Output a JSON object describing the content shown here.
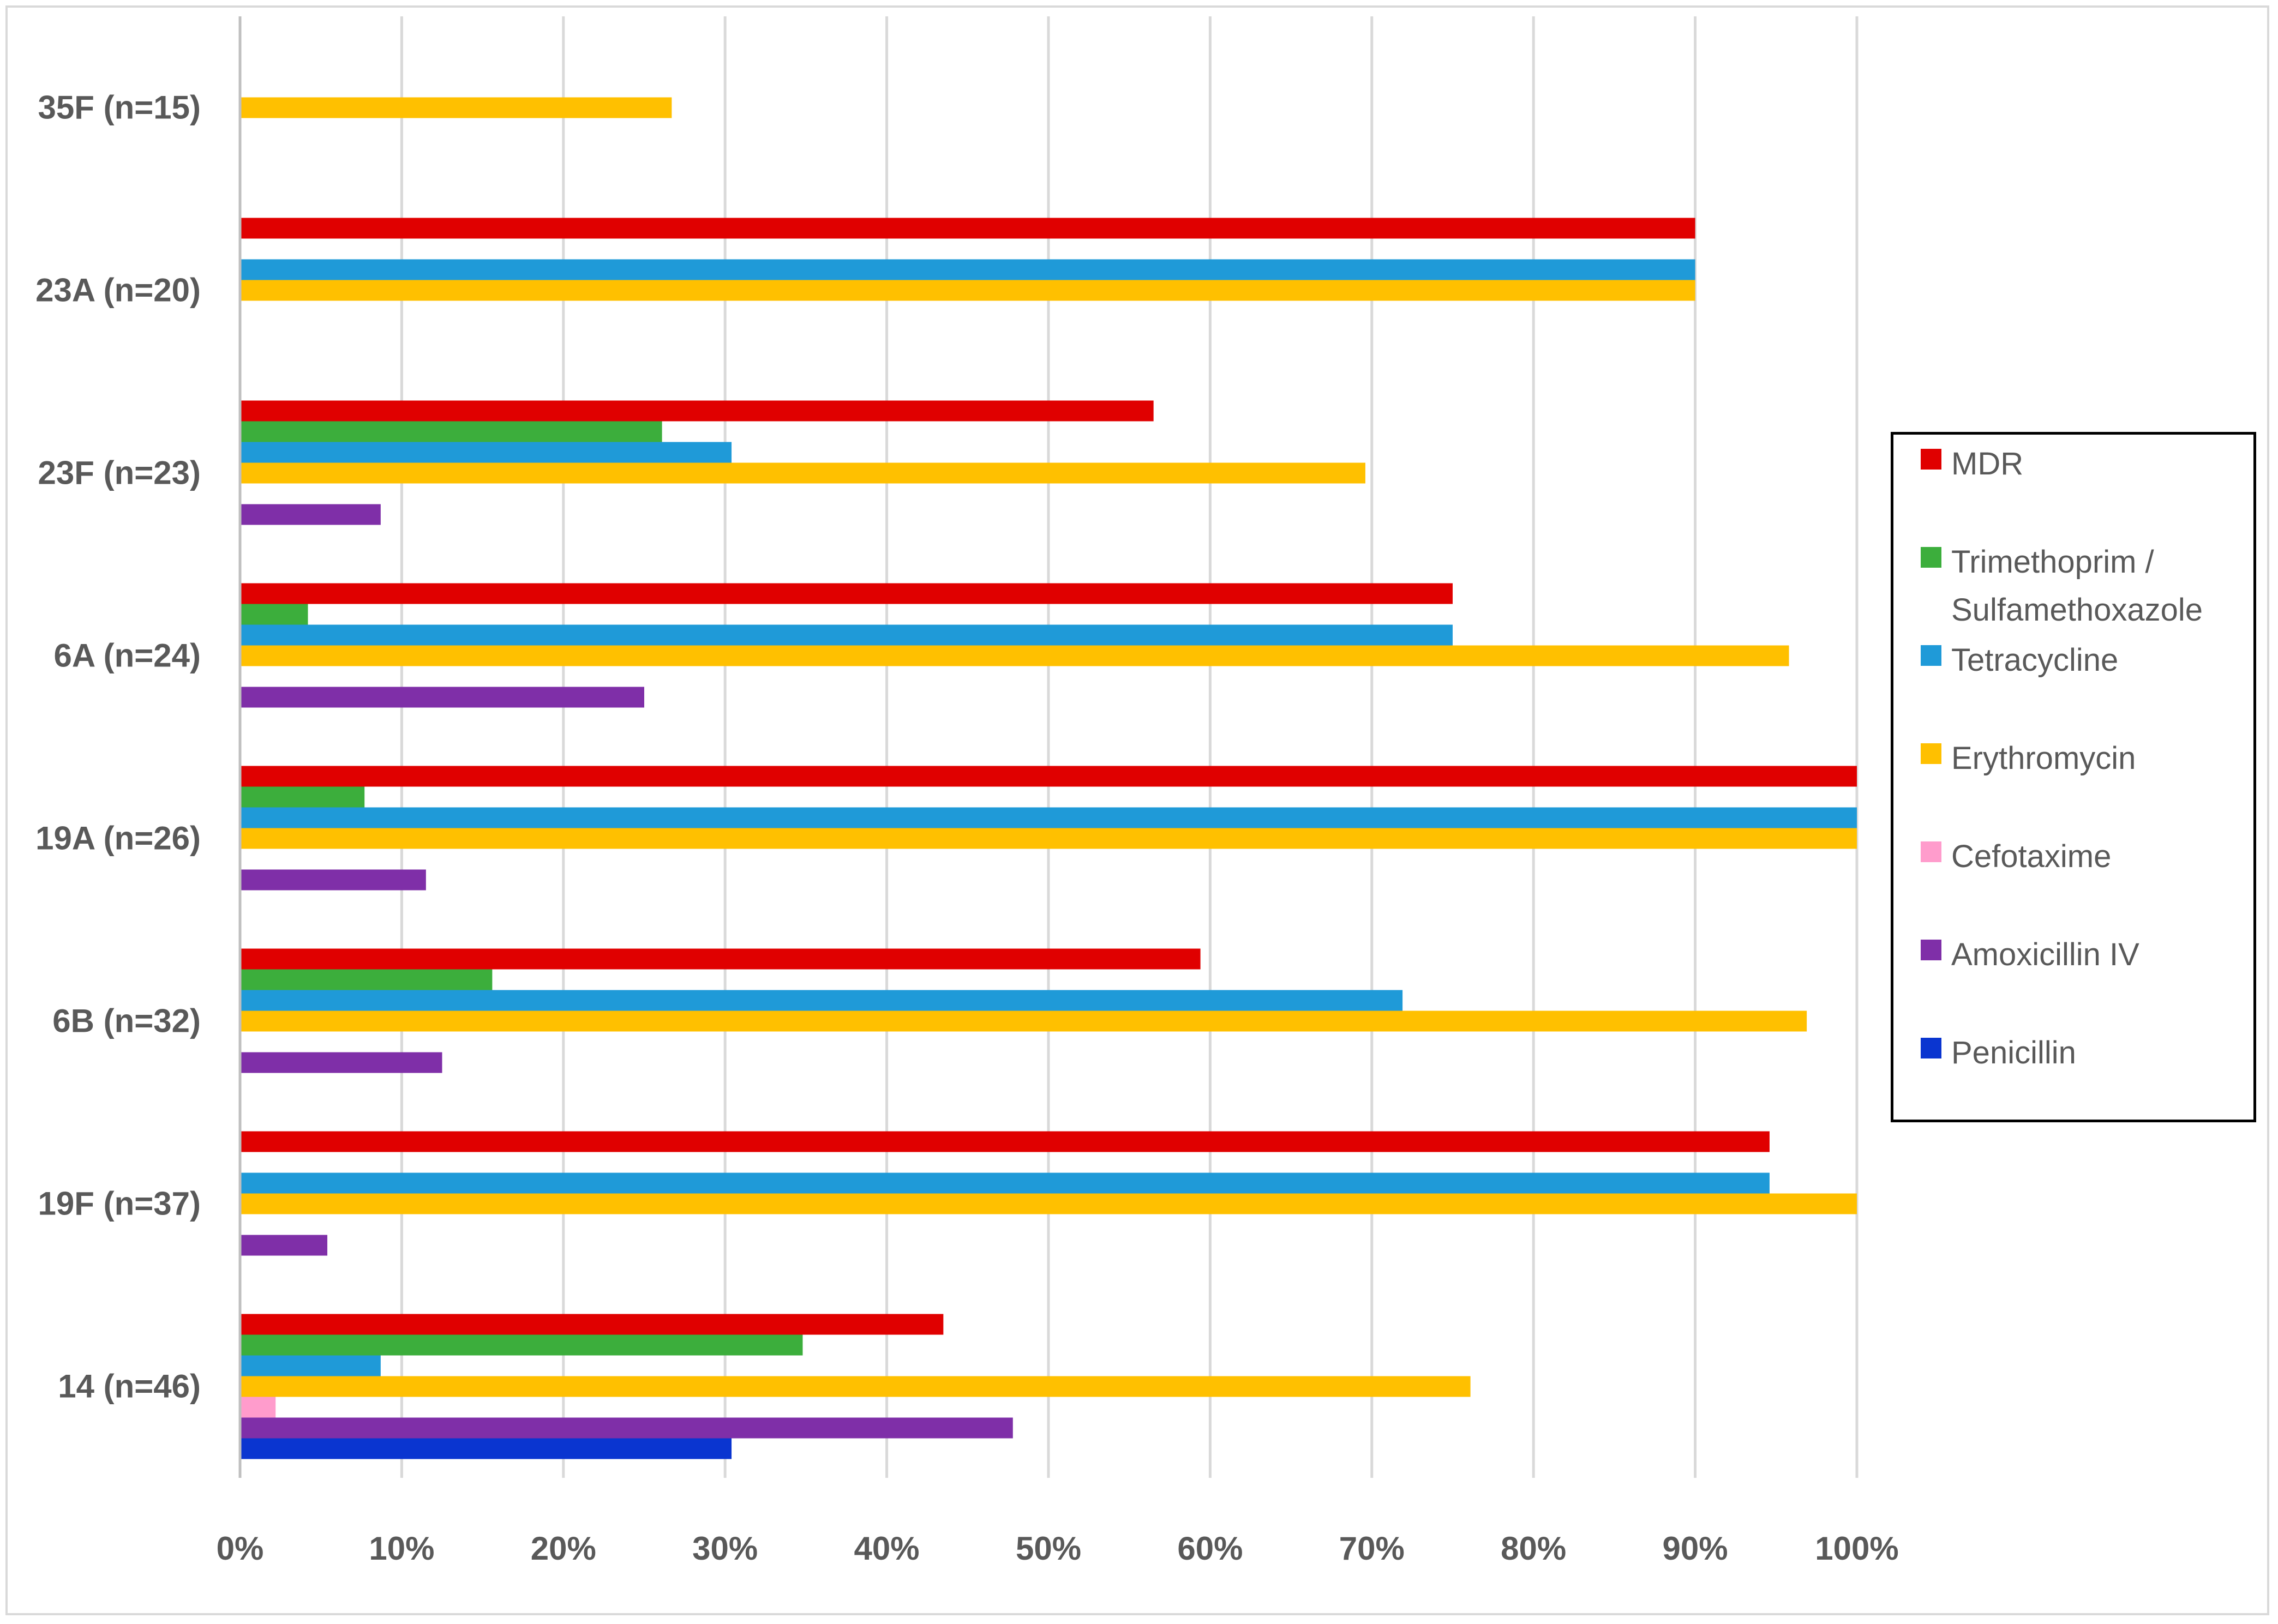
{
  "chart_data": {
    "type": "bar",
    "orientation": "horizontal",
    "title": "",
    "xlabel": "",
    "ylabel": "",
    "xlim": [
      0,
      100
    ],
    "x_ticks": [
      "0%",
      "10%",
      "20%",
      "30%",
      "40%",
      "50%",
      "60%",
      "70%",
      "80%",
      "90%",
      "100%"
    ],
    "grid": true,
    "legend_position": "right",
    "categories": [
      "35F (n=15)",
      "23A (n=20)",
      "23F (n=23)",
      "6A (n=24)",
      "19A (n=26)",
      "6B (n=32)",
      "19F (n=37)",
      "14 (n=46)"
    ],
    "series": [
      {
        "name": "MDR",
        "color": "#e00000",
        "values": [
          0,
          90,
          56.5,
          75,
          100,
          59.4,
          94.6,
          43.5
        ]
      },
      {
        "name": "Trimethoprim / Sulfamethoxazole",
        "color": "#3cae3c",
        "values": [
          0,
          0,
          26.1,
          4.2,
          7.7,
          15.6,
          0,
          34.8
        ]
      },
      {
        "name": "Tetracycline",
        "color": "#1f9ad8",
        "values": [
          0,
          90,
          30.4,
          75,
          100,
          71.9,
          94.6,
          8.7
        ]
      },
      {
        "name": "Erythromycin",
        "color": "#ffc000",
        "values": [
          26.7,
          90,
          69.6,
          95.8,
          100,
          96.9,
          100,
          76.1
        ]
      },
      {
        "name": "Cefotaxime",
        "color": "#ff9ccc",
        "values": [
          0,
          0,
          0,
          0,
          0,
          0,
          0,
          2.2
        ]
      },
      {
        "name": "Amoxicillin IV",
        "color": "#7f2fa8",
        "values": [
          0,
          0,
          8.7,
          25,
          11.5,
          12.5,
          5.4,
          47.8
        ]
      },
      {
        "name": "Penicillin",
        "color": "#0a35d0",
        "values": [
          0,
          0,
          0,
          0,
          0,
          0,
          0,
          30.4
        ]
      }
    ],
    "legend": [
      {
        "label": "MDR",
        "color": "#e00000"
      },
      {
        "label": "Trimethoprim /\nSulfamethoxazole",
        "color": "#3cae3c"
      },
      {
        "label": "Tetracycline",
        "color": "#1f9ad8"
      },
      {
        "label": "Erythromycin",
        "color": "#ffc000"
      },
      {
        "label": "Cefotaxime",
        "color": "#ff9ccc"
      },
      {
        "label": "Amoxicillin IV",
        "color": "#7f2fa8"
      },
      {
        "label": "Penicillin",
        "color": "#0a35d0"
      }
    ]
  }
}
